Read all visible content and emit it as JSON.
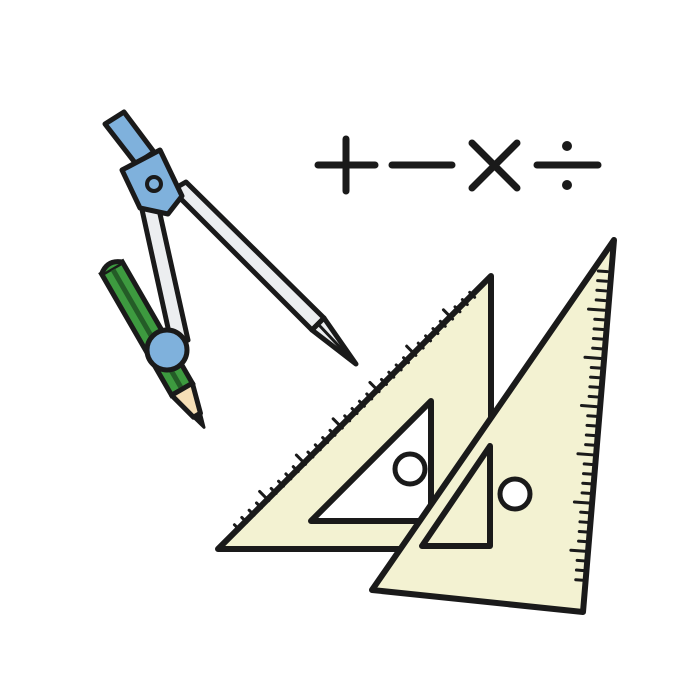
{
  "illustration": {
    "subject": "math-tools",
    "objects": [
      "compass",
      "pencil",
      "triangle-ruler-45",
      "triangle-ruler-30-60",
      "plus-sign",
      "minus-sign",
      "times-sign",
      "divide-sign"
    ]
  },
  "colors": {
    "outline": "#1a1a1a",
    "ruler_fill": "#f3f2d2",
    "compass_blue": "#7fb1dc",
    "compass_silver": "#eceef0",
    "pencil_green": "#3d9a3f",
    "pencil_dark_green": "#245c27",
    "pencil_wood": "#f6dfb6"
  }
}
